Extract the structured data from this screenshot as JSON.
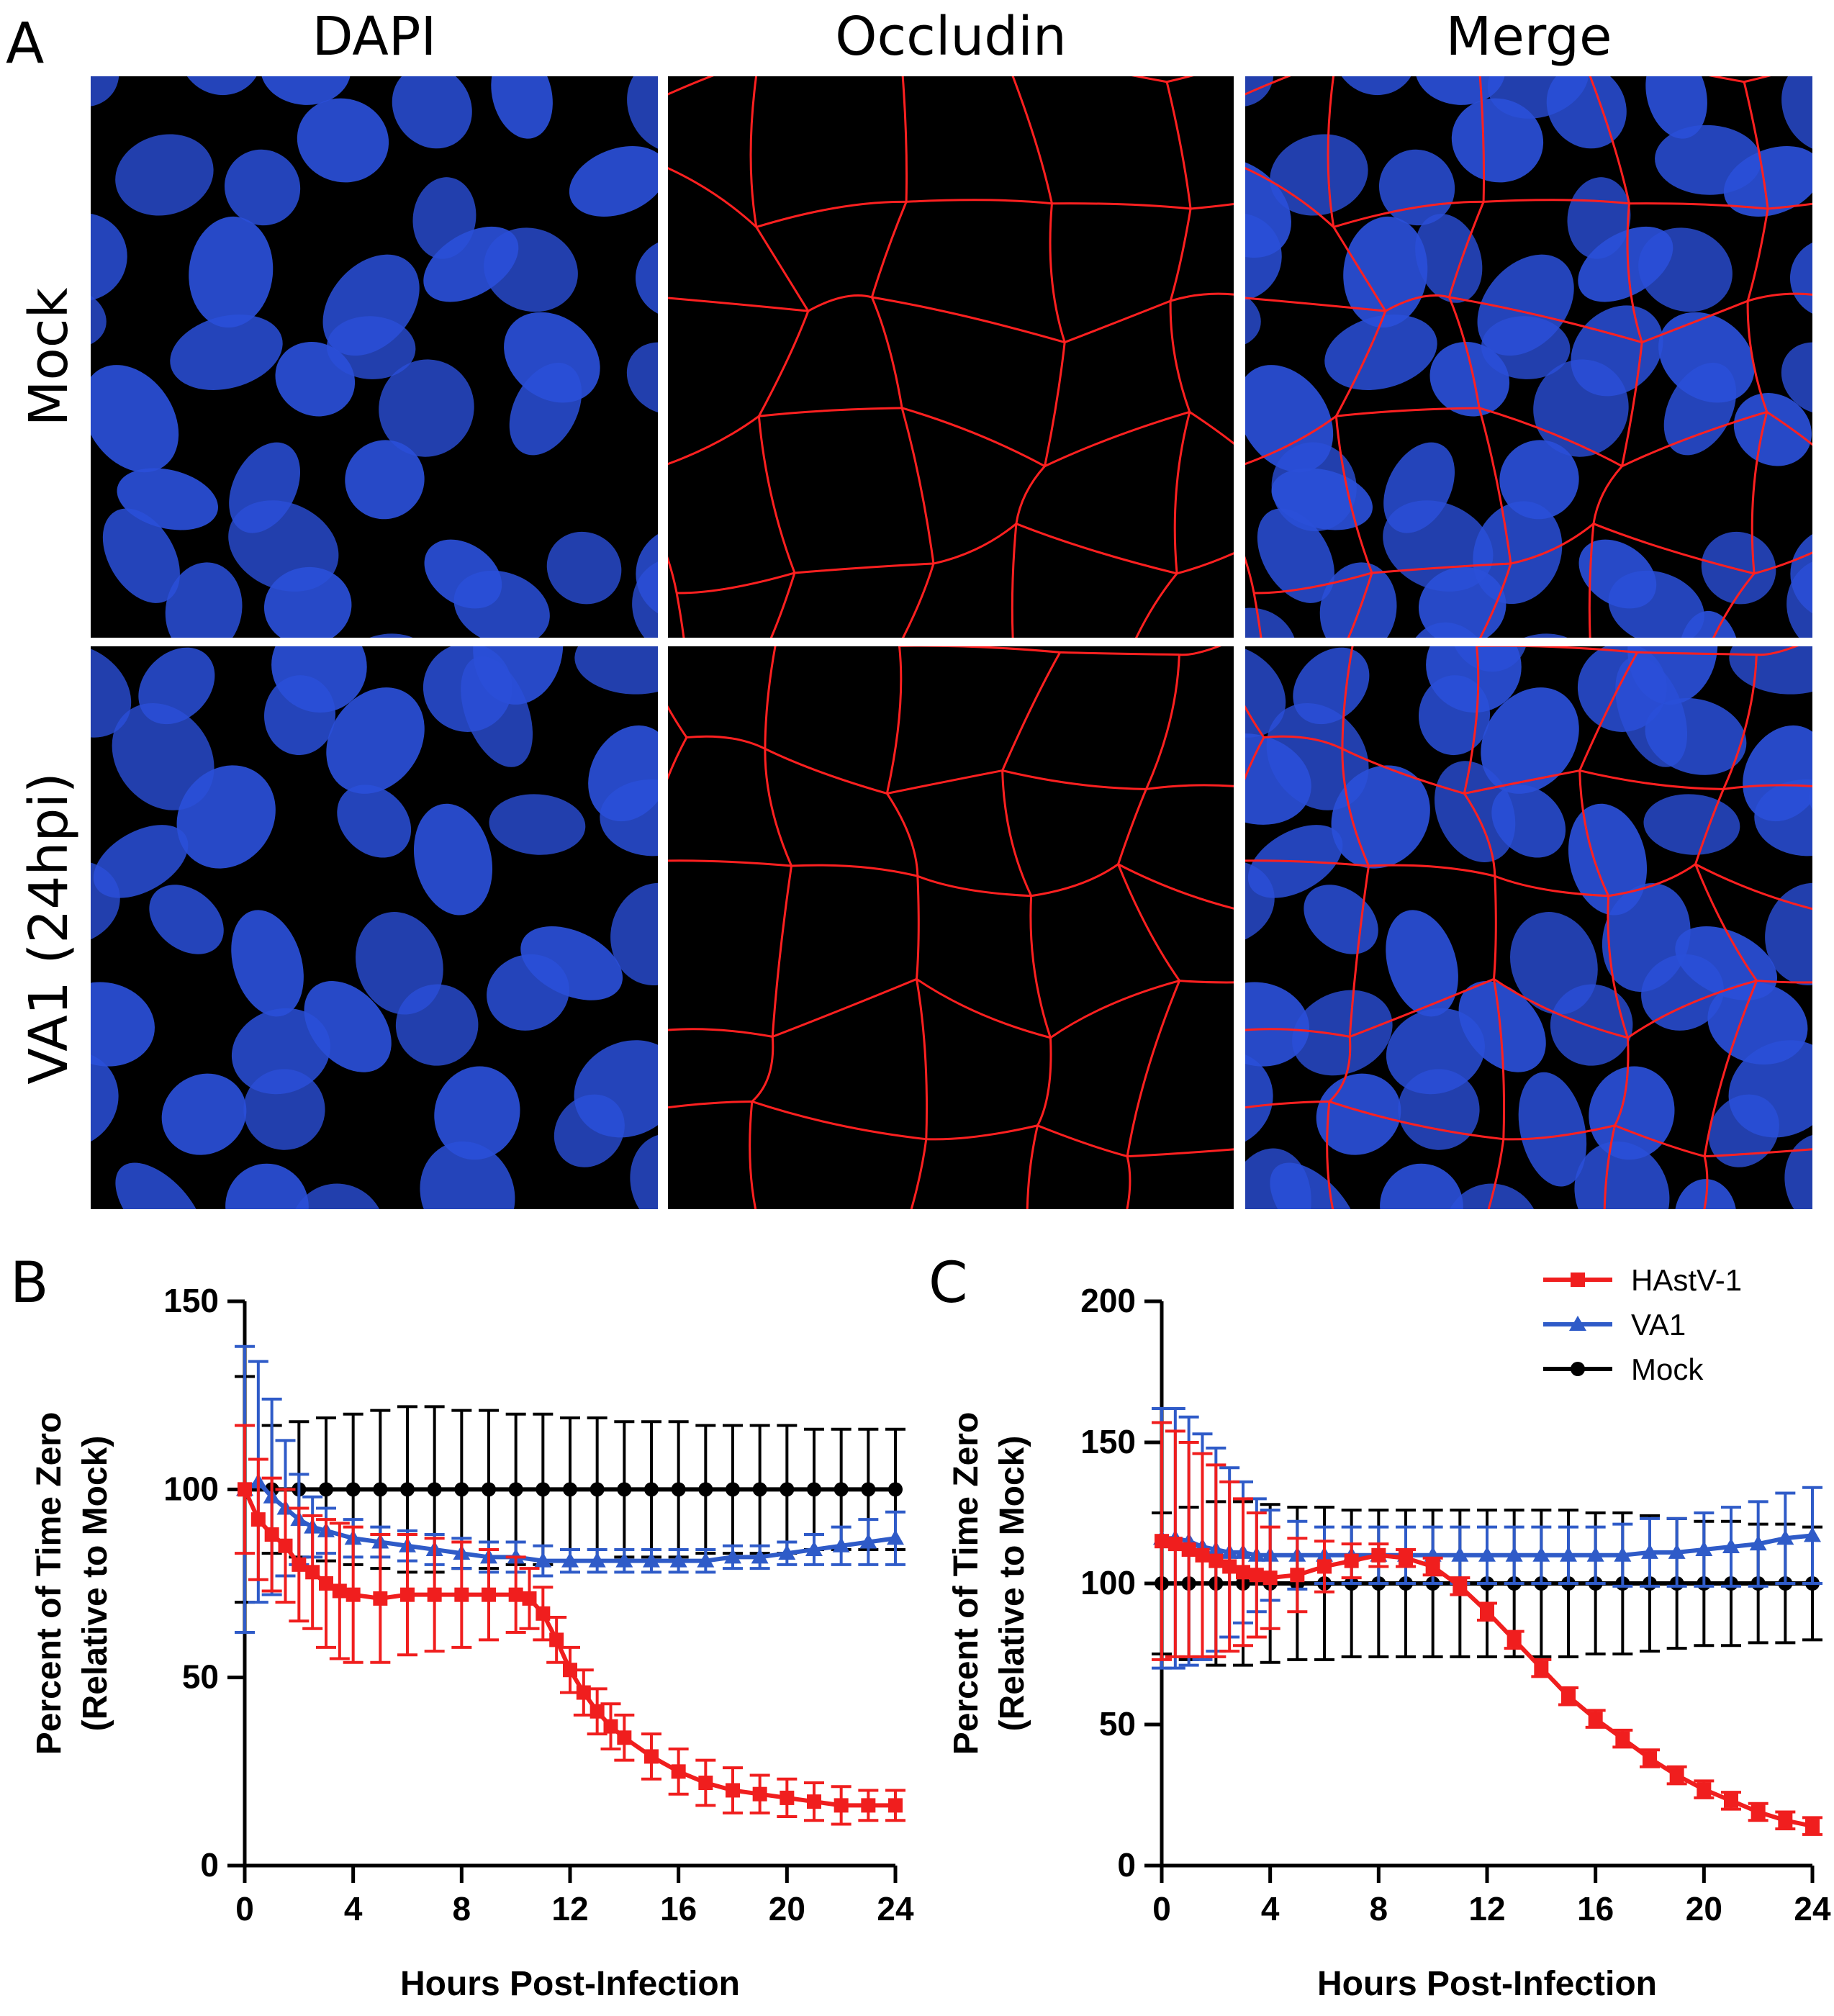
{
  "figure": {
    "panels": {
      "a": "A",
      "b": "B",
      "c": "C"
    },
    "columns": [
      "DAPI",
      "Occludin",
      "Merge"
    ],
    "rows": [
      "Mock",
      "VA1 (24hpi)"
    ]
  },
  "colors": {
    "hastv1": "#f01e1e",
    "va1": "#2f5bc8",
    "mock": "#000000",
    "nucleus": "#2a4fd8",
    "occludin": "#ff2020"
  },
  "chart_data": [
    {
      "type": "line",
      "panel": "B",
      "xlabel": "Hours Post-Infection",
      "ylabel": "Percent of Time Zero",
      "ylabel2": "(Relative to Mock)",
      "xlim": [
        0,
        24
      ],
      "ylim": [
        0,
        150
      ],
      "xticks": [
        "0",
        "4",
        "8",
        "12",
        "16",
        "20",
        "24"
      ],
      "yticks": [
        "0",
        "50",
        "100",
        "150"
      ],
      "series": [
        {
          "name": "HAstV-1",
          "x": [
            0,
            0.5,
            1,
            1.5,
            2,
            2.5,
            3,
            3.5,
            4,
            5,
            6,
            7,
            8,
            9,
            10,
            10.5,
            11,
            11.5,
            12,
            12.5,
            13,
            13.5,
            14,
            15,
            16,
            17,
            18,
            19,
            20,
            21,
            22,
            23,
            24
          ],
          "values": [
            100,
            92,
            88,
            85,
            80,
            78,
            75,
            73,
            72,
            71,
            72,
            72,
            72,
            72,
            72,
            71,
            67,
            60,
            52,
            46,
            41,
            37,
            34,
            29,
            25,
            22,
            20,
            19,
            18,
            17,
            16,
            16,
            16
          ],
          "err": [
            17,
            16,
            15,
            15,
            15,
            15,
            17,
            18,
            18,
            17,
            16,
            15,
            14,
            12,
            10,
            8,
            7,
            6,
            6,
            6,
            6,
            6,
            6,
            6,
            6,
            6,
            6,
            5,
            5,
            5,
            5,
            4,
            4
          ]
        },
        {
          "name": "VA1",
          "x": [
            0,
            0.5,
            1,
            1.5,
            2,
            2.5,
            3,
            4,
            5,
            6,
            7,
            8,
            9,
            10,
            11,
            12,
            13,
            14,
            15,
            16,
            17,
            18,
            19,
            20,
            21,
            22,
            23,
            24
          ],
          "values": [
            100,
            102,
            98,
            95,
            92,
            90,
            89,
            87,
            86,
            85,
            84,
            83,
            82,
            82,
            81,
            81,
            81,
            81,
            81,
            81,
            81,
            82,
            82,
            83,
            84,
            85,
            86,
            87
          ],
          "err": [
            38,
            32,
            26,
            18,
            12,
            8,
            6,
            5,
            4,
            4,
            4,
            4,
            4,
            4,
            4,
            3,
            3,
            3,
            3,
            3,
            3,
            3,
            3,
            3,
            4,
            5,
            6,
            7
          ]
        },
        {
          "name": "Mock",
          "x": [
            0,
            1,
            2,
            3,
            4,
            5,
            6,
            7,
            8,
            9,
            10,
            11,
            12,
            13,
            14,
            15,
            16,
            17,
            18,
            19,
            20,
            21,
            22,
            23,
            24
          ],
          "values": [
            100,
            100,
            100,
            100,
            100,
            100,
            100,
            100,
            100,
            100,
            100,
            100,
            100,
            100,
            100,
            100,
            100,
            100,
            100,
            100,
            100,
            100,
            100,
            100,
            100
          ],
          "err": [
            30,
            17,
            18,
            19,
            20,
            21,
            22,
            22,
            21,
            21,
            20,
            20,
            19,
            19,
            18,
            18,
            18,
            17,
            17,
            17,
            17,
            16,
            16,
            16,
            16
          ]
        }
      ]
    },
    {
      "type": "line",
      "panel": "C",
      "xlabel": "Hours Post-Infection",
      "ylabel": "Percent of Time Zero",
      "ylabel2": "(Relative to Mock)",
      "xlim": [
        0,
        24
      ],
      "ylim": [
        0,
        200
      ],
      "xticks": [
        "0",
        "4",
        "8",
        "12",
        "16",
        "20",
        "24"
      ],
      "yticks": [
        "0",
        "50",
        "100",
        "150",
        "200"
      ],
      "legend": [
        "HAstV-1",
        "VA1",
        "Mock"
      ],
      "series": [
        {
          "name": "HAstV-1",
          "x": [
            0,
            0.5,
            1,
            1.5,
            2,
            2.5,
            3,
            3.5,
            4,
            5,
            6,
            7,
            8,
            9,
            10,
            11,
            12,
            13,
            14,
            15,
            16,
            17,
            18,
            19,
            20,
            21,
            22,
            23,
            24
          ],
          "values": [
            115,
            114,
            112,
            110,
            108,
            106,
            104,
            103,
            102,
            103,
            106,
            108,
            110,
            109,
            106,
            99,
            90,
            80,
            70,
            60,
            52,
            45,
            38,
            32,
            27,
            23,
            19,
            16,
            14
          ],
          "err": [
            42,
            40,
            38,
            36,
            34,
            30,
            26,
            22,
            18,
            13,
            9,
            6,
            4,
            3,
            3,
            3,
            3,
            3,
            3,
            3,
            3,
            3,
            3,
            3,
            3,
            3,
            3,
            3,
            3
          ]
        },
        {
          "name": "VA1",
          "x": [
            0,
            0.5,
            1,
            1.5,
            2,
            2.5,
            3,
            3.5,
            4,
            5,
            6,
            7,
            8,
            9,
            10,
            11,
            12,
            13,
            14,
            15,
            16,
            17,
            18,
            19,
            20,
            21,
            22,
            23,
            24
          ],
          "values": [
            116,
            116,
            115,
            113,
            112,
            111,
            111,
            110,
            110,
            110,
            110,
            110,
            110,
            110,
            110,
            110,
            110,
            110,
            110,
            110,
            110,
            110,
            111,
            111,
            112,
            113,
            114,
            116,
            117
          ],
          "err": [
            46,
            46,
            44,
            40,
            36,
            30,
            25,
            20,
            16,
            12,
            10,
            10,
            10,
            10,
            10,
            10,
            10,
            10,
            10,
            10,
            10,
            11,
            12,
            12,
            13,
            14,
            15,
            16,
            17
          ]
        },
        {
          "name": "Mock",
          "x": [
            0,
            1,
            2,
            3,
            4,
            5,
            6,
            7,
            8,
            9,
            10,
            11,
            12,
            13,
            14,
            15,
            16,
            17,
            18,
            19,
            20,
            21,
            22,
            23,
            24
          ],
          "values": [
            100,
            100,
            100,
            100,
            100,
            100,
            100,
            100,
            100,
            100,
            100,
            100,
            100,
            100,
            100,
            100,
            100,
            100,
            100,
            100,
            100,
            100,
            100,
            100,
            100
          ],
          "err": [
            25,
            27,
            29,
            29,
            28,
            27,
            27,
            26,
            26,
            26,
            26,
            26,
            26,
            26,
            26,
            26,
            25,
            25,
            24,
            23,
            22,
            22,
            21,
            21,
            20
          ]
        }
      ]
    }
  ]
}
